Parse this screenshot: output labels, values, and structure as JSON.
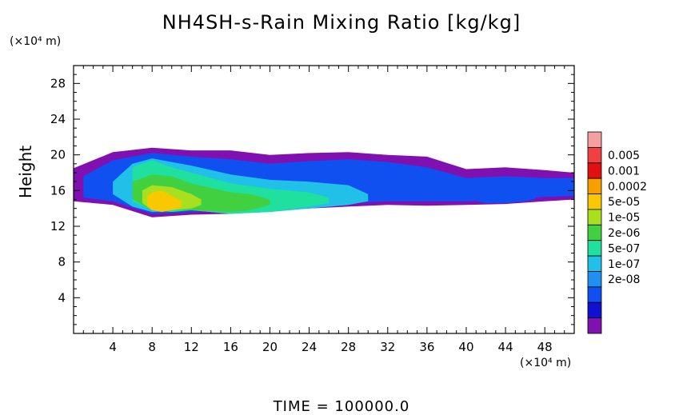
{
  "chart_data": {
    "type": "heatmap",
    "title": "NH4SH-s-Rain Mixing Ratio [kg/kg]",
    "ylabel": "Height",
    "x_unit": "(×10⁴ m)",
    "y_unit": "(×10⁴ m)",
    "footer": "TIME  =  100000.0",
    "xlim": [
      0,
      51
    ],
    "ylim": [
      0,
      30
    ],
    "x_ticks": [
      4,
      8,
      12,
      16,
      20,
      24,
      28,
      32,
      36,
      40,
      44,
      48
    ],
    "y_ticks": [
      4,
      8,
      12,
      16,
      20,
      24,
      28
    ],
    "colorbar": {
      "labels": [
        "0.005",
        "0.001",
        "0.0002",
        "5e-05",
        "1e-05",
        "2e-06",
        "5e-07",
        "1e-07",
        "2e-08"
      ],
      "colors": [
        "#f4a0a0",
        "#f04040",
        "#e01010",
        "#f6a000",
        "#f8c800",
        "#a8e020",
        "#40d040",
        "#20e0a0",
        "#20c0e8",
        "#2090f0",
        "#1050f0",
        "#1010d0",
        "#8010b0"
      ]
    },
    "field_layers": [
      {
        "level": 0,
        "x": [
          0,
          4,
          8,
          12,
          16,
          20,
          24,
          28,
          32,
          36,
          40,
          44,
          48,
          51
        ],
        "top": [
          18.5,
          20.3,
          20.8,
          20.5,
          20.5,
          20.0,
          20.2,
          20.3,
          20.0,
          19.8,
          18.4,
          18.6,
          18.3,
          18.0
        ],
        "bottom": [
          14.8,
          14.4,
          13.0,
          13.3,
          13.4,
          13.8,
          14.0,
          14.2,
          14.4,
          14.3,
          14.4,
          14.5,
          14.8,
          15.0
        ]
      },
      {
        "level": 2,
        "x": [
          1,
          4,
          8,
          12,
          16,
          20,
          24,
          28,
          32,
          36,
          40,
          44,
          48,
          51
        ],
        "top": [
          17.6,
          19.4,
          20.2,
          19.8,
          19.5,
          19.0,
          19.3,
          19.5,
          19.2,
          18.6,
          17.4,
          17.6,
          17.4,
          17.4
        ],
        "bottom": [
          15.2,
          14.8,
          13.4,
          13.6,
          13.8,
          14.2,
          14.5,
          14.6,
          14.8,
          14.8,
          14.8,
          15.0,
          15.3,
          15.4
        ]
      },
      {
        "level": 4,
        "x": [
          4,
          6,
          8,
          12,
          16,
          20,
          24,
          28,
          30
        ],
        "top": [
          17.0,
          19.0,
          19.6,
          18.8,
          17.8,
          17.2,
          17.0,
          16.6,
          15.6
        ],
        "bottom": [
          15.6,
          14.2,
          13.6,
          13.8,
          13.4,
          13.6,
          14.0,
          14.4,
          14.8
        ]
      },
      {
        "level": 5,
        "x": [
          6,
          8,
          10,
          12,
          16,
          20,
          24,
          26
        ],
        "top": [
          18.6,
          19.4,
          18.6,
          18.0,
          16.8,
          16.2,
          15.8,
          15.2
        ],
        "bottom": [
          14.8,
          13.8,
          13.6,
          13.8,
          13.4,
          13.6,
          14.2,
          14.6
        ]
      },
      {
        "level": 6,
        "x": [
          6,
          8,
          10,
          12,
          16,
          18,
          20
        ],
        "top": [
          17.0,
          17.8,
          17.6,
          16.8,
          15.8,
          15.6,
          15.0
        ],
        "bottom": [
          15.0,
          13.8,
          13.8,
          13.8,
          13.6,
          13.8,
          14.4
        ]
      },
      {
        "level": 7,
        "x": [
          7,
          8,
          10,
          12,
          13
        ],
        "top": [
          16.0,
          16.6,
          16.4,
          15.6,
          15.0
        ],
        "bottom": [
          14.6,
          13.8,
          13.8,
          14.0,
          14.4
        ]
      },
      {
        "level": 8,
        "x": [
          7.5,
          8,
          9,
          10,
          11
        ],
        "top": [
          15.4,
          15.8,
          16.0,
          15.4,
          14.8
        ],
        "bottom": [
          14.2,
          13.8,
          13.6,
          13.8,
          14.2
        ]
      },
      {
        "level": 2,
        "x": [
          41,
          42,
          44,
          46,
          47
        ],
        "top": [
          15.5,
          16.2,
          16.4,
          16.0,
          15.4
        ],
        "bottom": [
          14.8,
          14.6,
          14.6,
          14.8,
          15.0
        ]
      }
    ]
  }
}
